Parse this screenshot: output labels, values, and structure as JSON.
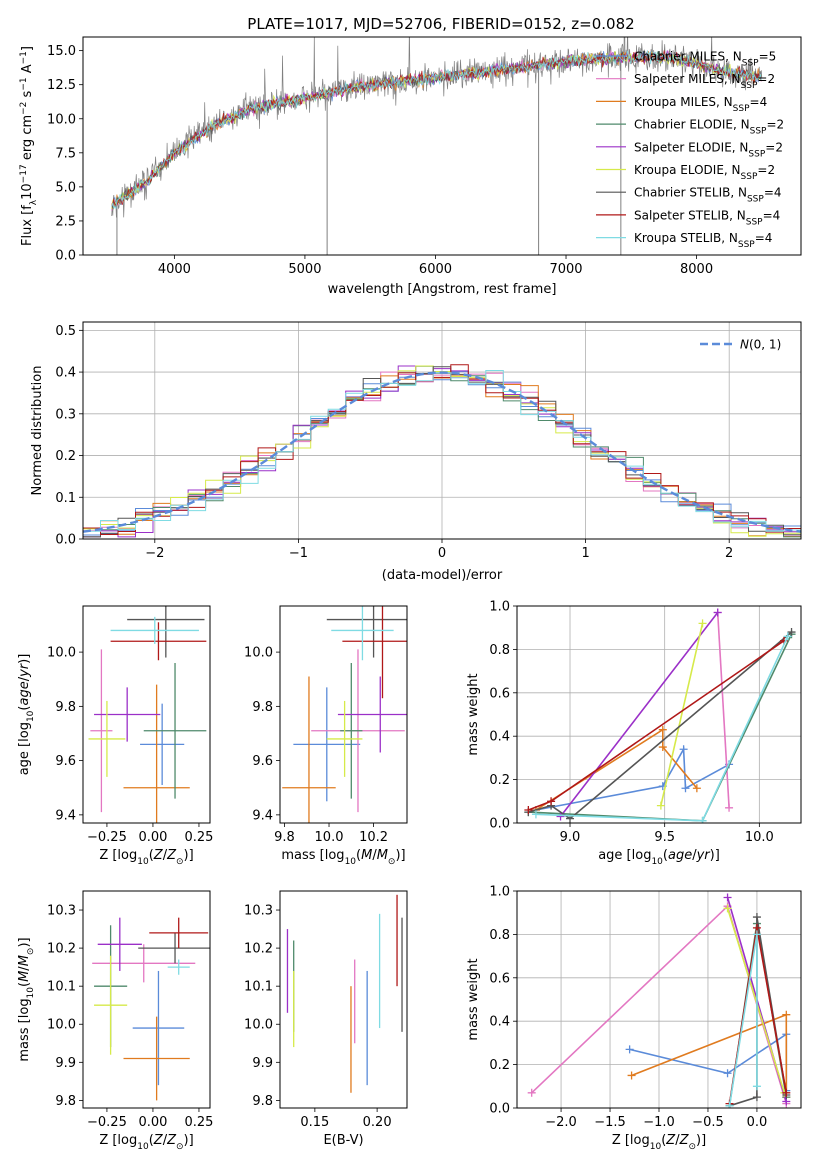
{
  "figure": {
    "title": "PLATE=1017, MJD=52706, FIBERID=0152, z=0.082"
  },
  "models": [
    {
      "name": "Chabrier MILES, N$_{SSP}$=5",
      "label_main": "Chabrier MILES, N",
      "label_sub": "SSP",
      "label_end": "=5",
      "color": "#5b8bd9"
    },
    {
      "name": "Salpeter MILES, N$_{SSP}$=2",
      "label_main": "Salpeter MILES, N",
      "label_sub": "SSP",
      "label_end": "=2",
      "color": "#e377c2"
    },
    {
      "name": "Kroupa MILES, N$_{SSP}$=4",
      "label_main": "Kroupa MILES, N",
      "label_sub": "SSP",
      "label_end": "=4",
      "color": "#e07b1f"
    },
    {
      "name": "Chabrier ELODIE, N$_{SSP}$=2",
      "label_main": "Chabrier ELODIE, N",
      "label_sub": "SSP",
      "label_end": "=2",
      "color": "#4f8a6b"
    },
    {
      "name": "Salpeter ELODIE, N$_{SSP}$=2",
      "label_main": "Salpeter ELODIE, N",
      "label_sub": "SSP",
      "label_end": "=2",
      "color": "#9b30c8"
    },
    {
      "name": "Kroupa ELODIE, N$_{SSP}$=2",
      "label_main": "Kroupa ELODIE, N",
      "label_sub": "SSP",
      "label_end": "=2",
      "color": "#d6ea4a"
    },
    {
      "name": "Chabrier STELIB, N$_{SSP}$=4",
      "label_main": "Chabrier STELIB, N",
      "label_sub": "SSP",
      "label_end": "=4",
      "color": "#555555"
    },
    {
      "name": "Salpeter STELIB, N$_{SSP}$=4",
      "label_main": "Salpeter STELIB, N",
      "label_sub": "SSP",
      "label_end": "=4",
      "color": "#b01818"
    },
    {
      "name": "Kroupa STELIB, N$_{SSP}$=4",
      "label_main": "Kroupa STELIB, N",
      "label_sub": "SSP",
      "label_end": "=4",
      "color": "#7fdbe3"
    }
  ],
  "chart_data": [
    {
      "id": "spectrum",
      "type": "line",
      "xlabel": "wavelength [Angstrom, rest frame]",
      "ylabel": "Flux [f$_\\lambda$10$^{-17}$ erg cm$^{-2}$ s$^{-1}$ A$^{-1}$]",
      "ylabel_parts": [
        "Flux [f",
        "λ",
        "10",
        "−17",
        " erg cm",
        "−2",
        " s",
        "−1",
        " A",
        "−1",
        "]"
      ],
      "xlim": [
        3300,
        8800
      ],
      "ylim": [
        0,
        16
      ],
      "xticks": [
        "4000",
        "5000",
        "6000",
        "7000",
        "8000"
      ],
      "yticks": [
        "0.0",
        "2.5",
        "5.0",
        "7.5",
        "10.0",
        "12.5",
        "15.0"
      ],
      "data_color": "#808080",
      "continuum": {
        "x": [
          3500,
          3800,
          4000,
          4300,
          4600,
          5000,
          5500,
          6000,
          6500,
          7000,
          7400,
          7800,
          8200,
          8500
        ],
        "y": [
          3.5,
          5.5,
          7.5,
          9.5,
          10.8,
          11.5,
          12.5,
          13.0,
          13.6,
          14.2,
          14.5,
          14.5,
          13.5,
          13.0
        ]
      },
      "spikes": [
        {
          "x": 5170,
          "y": 0
        },
        {
          "x": 6790,
          "y": 0
        },
        {
          "x": 7420,
          "y": 0
        },
        {
          "x": 3560,
          "y": 0
        }
      ],
      "legend_loc": "upper right"
    },
    {
      "id": "residuals",
      "type": "histogram",
      "xlabel": "(data-model)/error",
      "ylabel": "Normed distribution",
      "xlim": [
        -2.5,
        2.5
      ],
      "ylim": [
        0,
        0.52
      ],
      "xticks": [
        "−2",
        "−1",
        "0",
        "1",
        "2"
      ],
      "yticks": [
        "0.0",
        "0.1",
        "0.2",
        "0.3",
        "0.4",
        "0.5"
      ],
      "grid": true,
      "reference": {
        "label": "N(0,1)",
        "color": "#5b8bd9"
      },
      "bins": 41,
      "legend_loc": "upper right"
    },
    {
      "id": "age_vs_Z",
      "type": "errorbar",
      "xlabel": "Z [log$_{10}$(Z/Z$_\\odot$)]",
      "ylabel": "age  [log$_{10}$(age/yr)]",
      "xlim": [
        -0.38,
        0.31
      ],
      "ylim": [
        9.37,
        10.17
      ],
      "xticks": [
        "−0.25",
        "0.00",
        "0.25"
      ],
      "yticks": [
        "9.4",
        "9.6",
        "9.8",
        "10.0"
      ],
      "points": [
        {
          "model": 0,
          "x": 0.05,
          "xerr": 0.12,
          "y": 9.66,
          "yerr": 0.15
        },
        {
          "model": 1,
          "x": -0.28,
          "xerr": 0.06,
          "y": 9.71,
          "yerr": 0.3
        },
        {
          "model": 2,
          "x": 0.02,
          "xerr": 0.18,
          "y": 9.5,
          "yerr": 0.38
        },
        {
          "model": 3,
          "x": 0.12,
          "xerr": 0.17,
          "y": 9.71,
          "yerr": 0.25
        },
        {
          "model": 4,
          "x": -0.14,
          "xerr": 0.18,
          "y": 9.77,
          "yerr": 0.1
        },
        {
          "model": 5,
          "x": -0.25,
          "xerr": 0.1,
          "y": 9.68,
          "yerr": 0.14
        },
        {
          "model": 6,
          "x": 0.07,
          "xerr": 0.21,
          "y": 10.12,
          "yerr": 0.14
        },
        {
          "model": 7,
          "x": 0.03,
          "xerr": 0.26,
          "y": 10.04,
          "yerr": 0.07
        },
        {
          "model": 8,
          "x": 0.01,
          "xerr": 0.24,
          "y": 10.08,
          "yerr": 0.05
        }
      ]
    },
    {
      "id": "age_vs_mass",
      "type": "errorbar",
      "xlabel": "mass [log$_{10}$(M/M$_\\odot$)]",
      "ylabel": "",
      "xlim": [
        9.78,
        10.35
      ],
      "ylim": [
        9.37,
        10.17
      ],
      "xticks": [
        "9.8",
        "10.0",
        "10.2"
      ],
      "yticks": [
        "9.4",
        "9.6",
        "9.8",
        "10.0"
      ],
      "points": [
        {
          "model": 0,
          "x": 9.99,
          "xerr": 0.15,
          "y": 9.66,
          "yerr": 0.21
        },
        {
          "model": 1,
          "x": 10.13,
          "xerr": 0.21,
          "y": 9.71,
          "yerr": 0.3
        },
        {
          "model": 2,
          "x": 9.91,
          "xerr": 0.12,
          "y": 9.5,
          "yerr": 0.41
        },
        {
          "model": 3,
          "x": 10.1,
          "xerr": 0.05,
          "y": 9.71,
          "yerr": 0.25
        },
        {
          "model": 4,
          "x": 10.23,
          "xerr": 0.19,
          "y": 9.77,
          "yerr": 0.14
        },
        {
          "model": 5,
          "x": 10.07,
          "xerr": 0.08,
          "y": 9.68,
          "yerr": 0.14
        },
        {
          "model": 6,
          "x": 10.2,
          "xerr": 0.21,
          "y": 10.12,
          "yerr": 0.14
        },
        {
          "model": 7,
          "x": 10.24,
          "xerr": 0.18,
          "y": 10.04,
          "yerr": 0.21
        },
        {
          "model": 8,
          "x": 10.15,
          "xerr": 0.14,
          "y": 10.08,
          "yerr": 0.11
        }
      ]
    },
    {
      "id": "weight_vs_age",
      "type": "line",
      "xlabel": "age  [log$_{10}$(age/yr)]",
      "ylabel": "mass weight",
      "xlim": [
        8.72,
        10.22
      ],
      "ylim": [
        0,
        1
      ],
      "xticks": [
        "9.0",
        "9.5",
        "10.0"
      ],
      "yticks": [
        "0.0",
        "0.2",
        "0.4",
        "0.6",
        "0.8",
        "1.0"
      ],
      "grid": true,
      "series": [
        {
          "model": 0,
          "x": [
            8.82,
            9.49,
            9.6,
            9.61,
            9.84
          ],
          "y": [
            0.06,
            0.17,
            0.34,
            0.16,
            0.27
          ]
        },
        {
          "model": 1,
          "x": [
            9.84,
            9.78
          ],
          "y": [
            0.07,
            0.97
          ]
        },
        {
          "model": 2,
          "x": [
            8.82,
            9.49,
            9.49,
            9.67
          ],
          "y": [
            0.06,
            0.43,
            0.35,
            0.16
          ]
        },
        {
          "model": 3,
          "x": [
            8.78,
            9.7,
            10.17
          ],
          "y": [
            0.05,
            0.01,
            0.87
          ]
        },
        {
          "model": 4,
          "x": [
            8.95,
            9.78
          ],
          "y": [
            0.03,
            0.97
          ]
        },
        {
          "model": 5,
          "x": [
            9.48,
            9.7
          ],
          "y": [
            0.08,
            0.92
          ]
        },
        {
          "model": 6,
          "x": [
            8.78,
            8.9,
            9.0,
            10.17
          ],
          "y": [
            0.05,
            0.08,
            0.02,
            0.88
          ]
        },
        {
          "model": 7,
          "x": [
            8.78,
            8.9,
            10.13
          ],
          "y": [
            0.06,
            0.1,
            0.84
          ]
        },
        {
          "model": 8,
          "x": [
            8.82,
            9.7,
            10.15
          ],
          "y": [
            0.04,
            0.01,
            0.86
          ]
        }
      ]
    },
    {
      "id": "mass_vs_Z",
      "type": "errorbar",
      "xlabel": "Z [log$_{10}$(Z/Z$_\\odot$)]",
      "ylabel": "mass [log$_{10}$(M/M$_\\odot$)]",
      "xlim": [
        -0.38,
        0.31
      ],
      "ylim": [
        9.78,
        10.35
      ],
      "xticks": [
        "−0.25",
        "0.00",
        "0.25"
      ],
      "yticks": [
        "9.8",
        "9.9",
        "10.0",
        "10.1",
        "10.2",
        "10.3"
      ],
      "points": [
        {
          "model": 0,
          "x": 0.03,
          "xerr": 0.14,
          "y": 9.99,
          "yerr": 0.15
        },
        {
          "model": 1,
          "x": -0.05,
          "xerr": 0.28,
          "y": 10.16,
          "yerr": 0.05
        },
        {
          "model": 2,
          "x": 0.02,
          "xerr": 0.18,
          "y": 9.91,
          "yerr": 0.11
        },
        {
          "model": 3,
          "x": -0.23,
          "xerr": 0.09,
          "y": 10.1,
          "yerr": 0.16
        },
        {
          "model": 4,
          "x": -0.18,
          "xerr": 0.12,
          "y": 10.21,
          "yerr": 0.07
        },
        {
          "model": 5,
          "x": -0.23,
          "xerr": 0.09,
          "y": 10.05,
          "yerr": 0.13
        },
        {
          "model": 6,
          "x": 0.12,
          "xerr": 0.2,
          "y": 10.2,
          "yerr": 0.04
        },
        {
          "model": 7,
          "x": 0.14,
          "xerr": 0.16,
          "y": 10.24,
          "yerr": 0.04
        },
        {
          "model": 8,
          "x": 0.14,
          "xerr": 0.06,
          "y": 10.15,
          "yerr": 0.02
        }
      ]
    },
    {
      "id": "mass_vs_ebv",
      "type": "errorbar",
      "xlabel": "E(B-V)",
      "ylabel": "",
      "xlim": [
        0.122,
        0.224
      ],
      "ylim": [
        9.78,
        10.35
      ],
      "xticks": [
        "0.15",
        "0.20"
      ],
      "yticks": [
        "9.8",
        "9.9",
        "10.0",
        "10.1",
        "10.2",
        "10.3"
      ],
      "points": [
        {
          "model": 0,
          "x": 0.192,
          "y": 9.99,
          "yerr": 0.15
        },
        {
          "model": 1,
          "x": 0.182,
          "y": 10.06,
          "yerr": 0.11
        },
        {
          "model": 2,
          "x": 0.179,
          "y": 9.96,
          "yerr": 0.14
        },
        {
          "model": 3,
          "x": 0.133,
          "y": 10.1,
          "yerr": 0.12
        },
        {
          "model": 4,
          "x": 0.128,
          "y": 10.14,
          "yerr": 0.11
        },
        {
          "model": 5,
          "x": 0.133,
          "y": 10.04,
          "yerr": 0.1
        },
        {
          "model": 6,
          "x": 0.22,
          "y": 10.13,
          "yerr": 0.15
        },
        {
          "model": 7,
          "x": 0.216,
          "y": 10.22,
          "yerr": 0.12
        },
        {
          "model": 8,
          "x": 0.202,
          "y": 10.14,
          "yerr": 0.15
        }
      ]
    },
    {
      "id": "weight_vs_Z",
      "type": "line",
      "xlabel": "Z [log$_{10}$(Z/Z$_\\odot$)]",
      "ylabel": "mass weight",
      "xlim": [
        -2.45,
        0.45
      ],
      "ylim": [
        0,
        1
      ],
      "xticks": [
        "−2.0",
        "−1.5",
        "−1.0",
        "−0.5",
        "0.0"
      ],
      "yticks": [
        "0.0",
        "0.2",
        "0.4",
        "0.6",
        "0.8",
        "1.0"
      ],
      "grid": true,
      "series": [
        {
          "model": 0,
          "x": [
            -1.3,
            -0.3,
            0.3,
            0.3
          ],
          "y": [
            0.27,
            0.16,
            0.34,
            0.08
          ]
        },
        {
          "model": 1,
          "x": [
            -2.3,
            -0.3,
            0.3
          ],
          "y": [
            0.07,
            0.93,
            0.02
          ]
        },
        {
          "model": 2,
          "x": [
            -1.28,
            0.3,
            0.3
          ],
          "y": [
            0.15,
            0.43,
            0.05
          ]
        },
        {
          "model": 3,
          "x": [
            -0.28,
            0.0,
            0.3
          ],
          "y": [
            0.01,
            0.85,
            0.05
          ]
        },
        {
          "model": 4,
          "x": [
            -0.3,
            0.3
          ],
          "y": [
            0.97,
            0.03
          ]
        },
        {
          "model": 5,
          "x": [
            -0.3,
            0.28
          ],
          "y": [
            0.92,
            0.07
          ]
        },
        {
          "model": 6,
          "x": [
            -0.28,
            0.0,
            0.0,
            0.3
          ],
          "y": [
            0.01,
            0.05,
            0.88,
            0.06
          ]
        },
        {
          "model": 7,
          "x": [
            -0.28,
            0.0,
            0.3
          ],
          "y": [
            0.02,
            0.83,
            0.07
          ]
        },
        {
          "model": 8,
          "x": [
            -0.28,
            0.0,
            0.0
          ],
          "y": [
            0.01,
            0.8,
            0.1
          ]
        }
      ]
    }
  ]
}
